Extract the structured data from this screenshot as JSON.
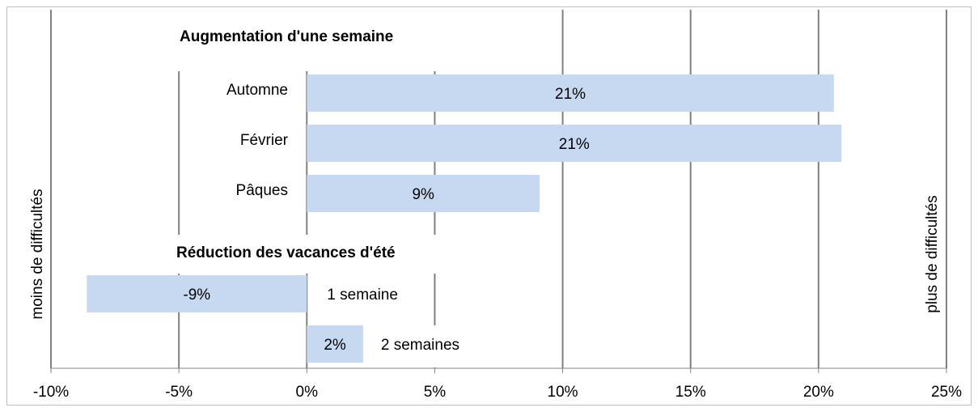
{
  "chart_data": {
    "type": "bar",
    "orientation": "horizontal",
    "color": "#c6d9f1",
    "groups": [
      {
        "title": "Augmentation d'une semaine",
        "categories": [
          "Automne",
          "Février",
          "Pâques"
        ],
        "values": [
          20.6,
          20.9,
          9.1
        ],
        "value_labels": [
          "21%",
          "21%",
          "9%"
        ]
      },
      {
        "title": "Réduction des vacances d'été",
        "categories": [
          "1 semaine",
          "2 semaines"
        ],
        "values": [
          -8.6,
          2.2
        ],
        "value_labels": [
          "-9%",
          "2%"
        ]
      }
    ],
    "left_label": "moins de difficultés",
    "right_label": "plus de difficultés",
    "xlim": [
      -10,
      25
    ],
    "xticks": [
      {
        "value": -10,
        "label": "-10%"
      },
      {
        "value": -5,
        "label": "-5%"
      },
      {
        "value": 0,
        "label": "0%"
      },
      {
        "value": 5,
        "label": "5%"
      },
      {
        "value": 10,
        "label": "10%"
      },
      {
        "value": 15,
        "label": "15%"
      },
      {
        "value": 20,
        "label": "20%"
      },
      {
        "value": 25,
        "label": "25%"
      }
    ],
    "grid": true
  }
}
